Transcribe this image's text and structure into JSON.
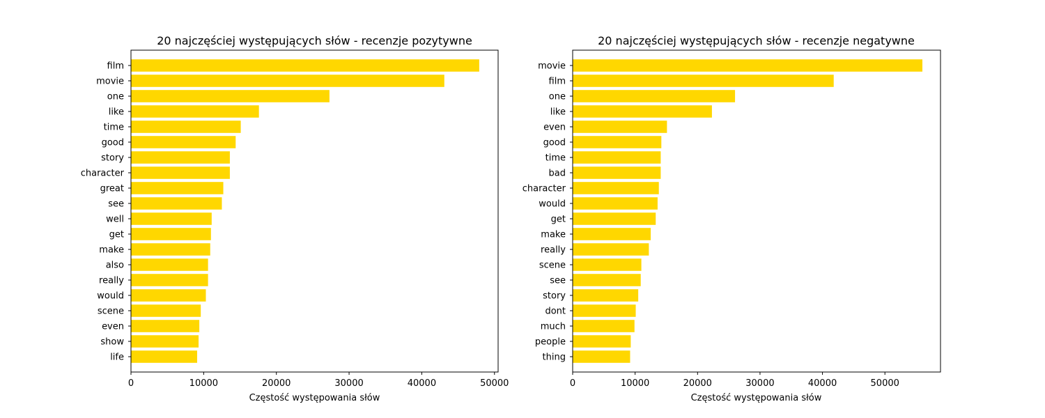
{
  "chart_data": [
    {
      "type": "bar",
      "orientation": "horizontal",
      "title": "20 najczęściej występujących słów - recenzje pozytywne",
      "xlabel": "Częstość występowania słów",
      "ylabel": "",
      "xlim": [
        0,
        50500
      ],
      "xticks": [
        0,
        10000,
        20000,
        30000,
        40000,
        50000
      ],
      "bar_color": "#ffd700",
      "grid": false,
      "categories": [
        "film",
        "movie",
        "one",
        "like",
        "time",
        "good",
        "story",
        "character",
        "great",
        "see",
        "well",
        "get",
        "make",
        "also",
        "really",
        "would",
        "scene",
        "even",
        "show",
        "life"
      ],
      "values": [
        47900,
        43100,
        27300,
        17600,
        15100,
        14400,
        13600,
        13600,
        12700,
        12500,
        11100,
        11000,
        10900,
        10600,
        10600,
        10300,
        9600,
        9400,
        9300,
        9100
      ]
    },
    {
      "type": "bar",
      "orientation": "horizontal",
      "title": "20 najczęściej występujących słów - recenzje negatywne",
      "xlabel": "Częstość występowania słów",
      "ylabel": "",
      "xlim": [
        0,
        58900
      ],
      "xticks": [
        0,
        10000,
        20000,
        30000,
        40000,
        50000
      ],
      "bar_color": "#ffd700",
      "grid": false,
      "categories": [
        "movie",
        "film",
        "one",
        "like",
        "even",
        "good",
        "time",
        "bad",
        "character",
        "would",
        "get",
        "make",
        "really",
        "scene",
        "see",
        "story",
        "dont",
        "much",
        "people",
        "thing"
      ],
      "values": [
        56000,
        41800,
        26000,
        22300,
        15100,
        14200,
        14100,
        14100,
        13800,
        13600,
        13300,
        12500,
        12200,
        11000,
        10900,
        10500,
        10100,
        9900,
        9300,
        9200
      ]
    }
  ]
}
